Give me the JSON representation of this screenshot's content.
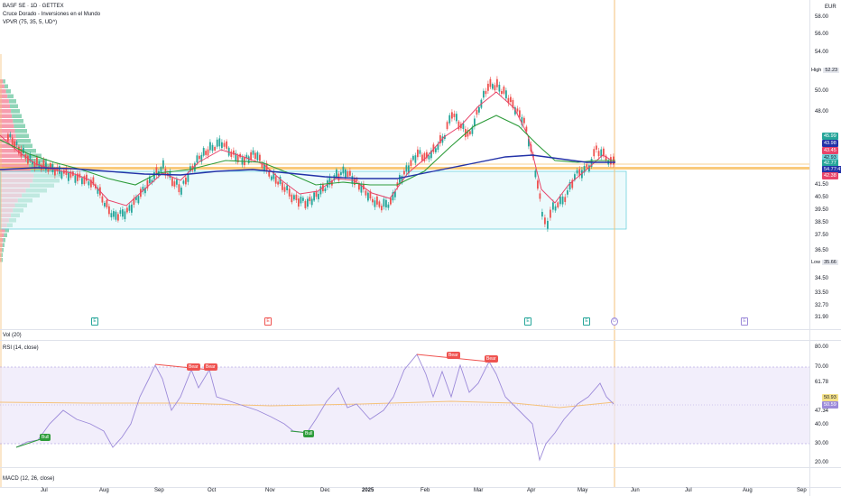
{
  "legend": {
    "symbol": "BASF SE · 1D · GETTEX",
    "subtitle": "Cruce Dorado - Inversiones en el Mundo",
    "vpvr": "VPVR (75, 35, 5, UD^)",
    "vol": "Vol (20)",
    "rsi": "RSI (14, close)",
    "macd": "MACD (12, 26, close)"
  },
  "currency": "EUR",
  "price_scale": [
    "58.00",
    "56.00",
    "54.00",
    "50.00",
    "48.00",
    "41.50",
    "40.50",
    "39.50",
    "38.50",
    "37.50",
    "36.50",
    "34.50",
    "33.50",
    "32.70",
    "31.90"
  ],
  "price_tags": {
    "high_label": "High",
    "high_value": "52.23",
    "low_label": "Low",
    "low_value": "35.66",
    "t1": "45.99",
    "t2": "43.98",
    "t3": "43.45",
    "t4": "42.93",
    "t5": "42.77",
    "t6": "54.77:47",
    "t7": "42.38"
  },
  "rsi_scale": [
    "80.00",
    "70.00",
    "61.78",
    "50.93",
    "47.34",
    "40.00",
    "30.00",
    "20.00"
  ],
  "rsi_tags": {
    "a": "50.93",
    "b": "50.59"
  },
  "x_labels": [
    "Jul",
    "Aug",
    "Sep",
    "Oct",
    "Nov",
    "Dec",
    "2025",
    "Feb",
    "Mar",
    "Apr",
    "May",
    "Jun",
    "Jul",
    "Aug",
    "Sep"
  ],
  "rsi_labels": {
    "bull": "Bull",
    "bear": "Bear"
  },
  "markers": [
    "E",
    "E",
    "E",
    "E",
    "D",
    "E"
  ],
  "colors": {
    "up": "#26a69a",
    "down": "#ef5350",
    "ma_red": "#e8446a",
    "ma_green": "#2e9c3b",
    "ma_blue": "#2332a8",
    "orange": "#f5a623",
    "rsi": "#9c8ad9"
  }
}
